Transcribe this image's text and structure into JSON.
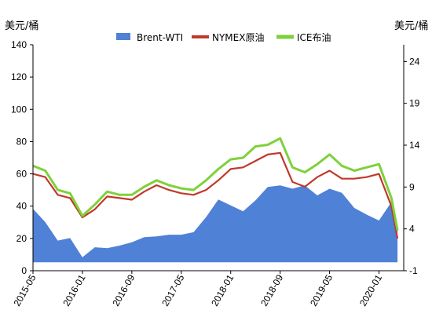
{
  "units": {
    "left": "美元/桶",
    "right": "美元/桶"
  },
  "chart_data": {
    "type": "line",
    "legend_position": "top",
    "grid": false,
    "x_ticks": [
      "2015-05",
      "2016-01",
      "2016-09",
      "2017-05",
      "2018-01",
      "2018-09",
      "2019-05",
      "2020-01"
    ],
    "y_left": {
      "label": "美元/桶",
      "ylim": [
        0,
        140
      ],
      "ticks": [
        0,
        20,
        40,
        60,
        80,
        100,
        120,
        140
      ]
    },
    "y_right": {
      "label": "美元/桶",
      "ylim": [
        -1,
        26
      ],
      "ticks": [
        -1,
        4,
        9,
        14,
        19,
        24
      ]
    },
    "x": [
      "2015-05",
      "2015-07",
      "2015-09",
      "2015-11",
      "2016-01",
      "2016-03",
      "2016-05",
      "2016-07",
      "2016-09",
      "2016-11",
      "2017-01",
      "2017-03",
      "2017-05",
      "2017-07",
      "2017-09",
      "2017-11",
      "2018-01",
      "2018-03",
      "2018-05",
      "2018-07",
      "2018-09",
      "2018-11",
      "2019-01",
      "2019-03",
      "2019-05",
      "2019-07",
      "2019-09",
      "2019-11",
      "2020-01",
      "2020-03",
      "2020-04"
    ],
    "series": [
      {
        "name": "Brent-WTI",
        "axis": "right",
        "style": "area",
        "color": "#4f81d6",
        "values": [
          6.4,
          4.8,
          2.6,
          2.9,
          0.6,
          1.8,
          1.7,
          2.0,
          2.4,
          3.0,
          3.1,
          3.3,
          3.3,
          3.6,
          5.4,
          7.5,
          6.8,
          6.1,
          7.4,
          9.0,
          9.2,
          8.8,
          9.2,
          8.0,
          8.8,
          8.3,
          6.5,
          5.7,
          5.0,
          7.2,
          4.5
        ]
      },
      {
        "name": "NYMEX原油",
        "axis": "left",
        "style": "line",
        "color": "#c0392b",
        "values": [
          60,
          58,
          47,
          45,
          33,
          38,
          46,
          45,
          44,
          49,
          53,
          50,
          48,
          47,
          50,
          56,
          63,
          64,
          68,
          72,
          73,
          55,
          52,
          58,
          62,
          57,
          57,
          58,
          60,
          40,
          20
        ]
      },
      {
        "name": "ICE布油",
        "axis": "left",
        "style": "line",
        "color": "#7fd13b",
        "values": [
          65,
          62,
          50,
          48,
          34,
          41,
          49,
          47,
          47,
          52,
          56,
          53,
          51,
          50,
          56,
          63,
          69,
          70,
          77,
          78,
          82,
          64,
          61,
          66,
          72,
          65,
          62,
          64,
          66,
          45,
          25
        ]
      }
    ]
  }
}
